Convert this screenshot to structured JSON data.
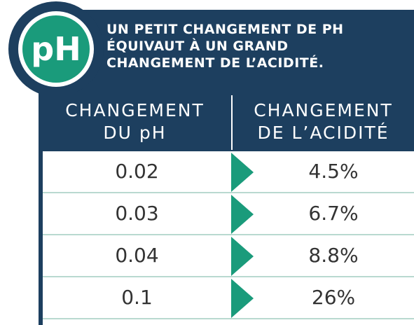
{
  "badge": "pH",
  "header": {
    "title": [
      "UN PETIT CHANGEMENT DE PH",
      "ÉQUIVAUT À UN GRAND",
      "CHANGEMENT DE L’ACIDITÉ."
    ]
  },
  "table": {
    "columns": [
      [
        "CHANGEMENT",
        "DU pH"
      ],
      [
        "CHANGEMENT",
        "DE L’ACIDITÉ"
      ]
    ],
    "rows": [
      [
        "0.02",
        "4.5%"
      ],
      [
        "0.03",
        "6.7%"
      ],
      [
        "0.04",
        "8.8%"
      ],
      [
        "0.1",
        "26%"
      ]
    ]
  }
}
